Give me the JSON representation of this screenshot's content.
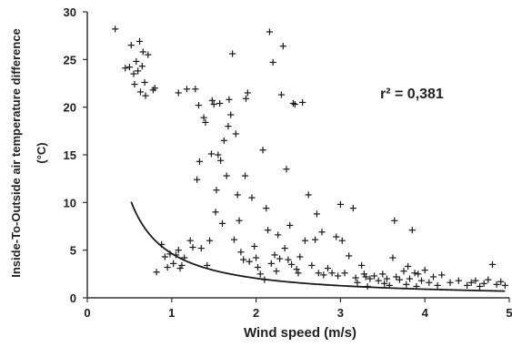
{
  "chart_data": {
    "type": "scatter",
    "xlabel": "Wind speed (m/s)",
    "ylabel_line1": "Inside-To-Outside air temperature difference",
    "ylabel_line2": "(°C)",
    "annotation": "r² = 0,381",
    "xlim": [
      0,
      5
    ],
    "ylim": [
      0,
      30
    ],
    "xticks": [
      "0",
      "1",
      "2",
      "3",
      "4",
      "5"
    ],
    "yticks": [
      "0",
      "5",
      "10",
      "15",
      "20",
      "25",
      "30"
    ],
    "grid": false,
    "marker": "+",
    "fit_curve": {
      "type": "power",
      "a": 4.65,
      "b": -1.18,
      "x_start": 0.52,
      "x_end": 4.95
    },
    "points": [
      [
        0.33,
        28.2
      ],
      [
        0.45,
        24.1
      ],
      [
        0.5,
        24.2
      ],
      [
        0.52,
        26.5
      ],
      [
        0.55,
        23.5
      ],
      [
        0.56,
        22.4
      ],
      [
        0.58,
        24.8
      ],
      [
        0.6,
        23.8
      ],
      [
        0.62,
        26.9
      ],
      [
        0.63,
        21.6
      ],
      [
        0.65,
        24.3
      ],
      [
        0.66,
        25.8
      ],
      [
        0.68,
        22.6
      ],
      [
        0.69,
        21.2
      ],
      [
        0.72,
        25.5
      ],
      [
        0.78,
        21.8
      ],
      [
        0.8,
        22.0
      ],
      [
        0.82,
        2.7
      ],
      [
        0.88,
        5.6
      ],
      [
        0.92,
        4.3
      ],
      [
        0.95,
        3.2
      ],
      [
        0.98,
        4.6
      ],
      [
        1.02,
        3.6
      ],
      [
        1.05,
        4.5
      ],
      [
        1.08,
        5.0
      ],
      [
        1.1,
        3.1
      ],
      [
        1.12,
        3.4
      ],
      [
        1.15,
        4.2
      ],
      [
        1.18,
        21.9
      ],
      [
        1.08,
        21.5
      ],
      [
        1.28,
        21.9
      ],
      [
        1.22,
        6.0
      ],
      [
        1.25,
        5.3
      ],
      [
        1.3,
        12.4
      ],
      [
        1.32,
        20.2
      ],
      [
        1.33,
        14.3
      ],
      [
        1.35,
        5.2
      ],
      [
        1.38,
        18.9
      ],
      [
        1.4,
        18.4
      ],
      [
        1.42,
        3.4
      ],
      [
        1.45,
        6.0
      ],
      [
        1.47,
        15.1
      ],
      [
        1.48,
        20.7
      ],
      [
        1.5,
        20.3
      ],
      [
        1.52,
        9.0
      ],
      [
        1.53,
        11.3
      ],
      [
        1.55,
        15.0
      ],
      [
        1.57,
        20.4
      ],
      [
        1.58,
        14.4
      ],
      [
        1.6,
        7.8
      ],
      [
        1.62,
        16.5
      ],
      [
        1.65,
        12.8
      ],
      [
        1.67,
        18.0
      ],
      [
        1.68,
        20.8
      ],
      [
        1.7,
        19.2
      ],
      [
        1.72,
        25.6
      ],
      [
        1.74,
        6.1
      ],
      [
        1.76,
        17.2
      ],
      [
        1.78,
        10.8
      ],
      [
        1.8,
        8.1
      ],
      [
        1.82,
        4.8
      ],
      [
        1.85,
        4.0
      ],
      [
        1.87,
        12.8
      ],
      [
        1.88,
        20.9
      ],
      [
        1.9,
        21.5
      ],
      [
        1.92,
        3.8
      ],
      [
        1.95,
        10.5
      ],
      [
        1.98,
        5.4
      ],
      [
        2.0,
        4.2
      ],
      [
        2.02,
        3.2
      ],
      [
        2.05,
        2.5
      ],
      [
        2.08,
        15.5
      ],
      [
        2.1,
        1.9
      ],
      [
        2.12,
        9.4
      ],
      [
        2.14,
        7.1
      ],
      [
        2.16,
        27.9
      ],
      [
        2.18,
        3.6
      ],
      [
        2.2,
        24.7
      ],
      [
        2.22,
        4.5
      ],
      [
        2.24,
        2.8
      ],
      [
        2.26,
        6.6
      ],
      [
        2.28,
        4.1
      ],
      [
        2.3,
        21.3
      ],
      [
        2.32,
        26.4
      ],
      [
        2.34,
        5.2
      ],
      [
        2.36,
        13.5
      ],
      [
        2.38,
        4.0
      ],
      [
        2.4,
        7.6
      ],
      [
        2.42,
        3.5
      ],
      [
        2.44,
        20.4
      ],
      [
        2.46,
        20.3
      ],
      [
        2.48,
        3.0
      ],
      [
        2.5,
        2.6
      ],
      [
        2.52,
        4.3
      ],
      [
        2.55,
        20.5
      ],
      [
        2.58,
        6.0
      ],
      [
        2.62,
        10.8
      ],
      [
        2.66,
        3.4
      ],
      [
        2.7,
        6.1
      ],
      [
        2.72,
        8.8
      ],
      [
        2.74,
        2.6
      ],
      [
        2.78,
        6.9
      ],
      [
        2.8,
        2.4
      ],
      [
        2.85,
        3.1
      ],
      [
        2.9,
        2.6
      ],
      [
        2.95,
        6.4
      ],
      [
        2.97,
        2.3
      ],
      [
        3.0,
        9.8
      ],
      [
        3.02,
        6.0
      ],
      [
        3.05,
        2.6
      ],
      [
        3.1,
        4.4
      ],
      [
        3.15,
        9.4
      ],
      [
        3.18,
        2.1
      ],
      [
        3.2,
        1.6
      ],
      [
        3.25,
        3.4
      ],
      [
        3.28,
        2.5
      ],
      [
        3.3,
        2.2
      ],
      [
        3.32,
        1.2
      ],
      [
        3.35,
        2.0
      ],
      [
        3.4,
        2.3
      ],
      [
        3.45,
        1.8
      ],
      [
        3.5,
        2.5
      ],
      [
        3.52,
        1.5
      ],
      [
        3.55,
        2.0
      ],
      [
        3.58,
        1.3
      ],
      [
        3.62,
        4.2
      ],
      [
        3.64,
        8.1
      ],
      [
        3.66,
        2.2
      ],
      [
        3.7,
        1.9
      ],
      [
        3.75,
        2.8
      ],
      [
        3.78,
        1.4
      ],
      [
        3.8,
        3.3
      ],
      [
        3.82,
        2.0
      ],
      [
        3.85,
        7.1
      ],
      [
        3.88,
        2.6
      ],
      [
        3.9,
        1.2
      ],
      [
        3.92,
        2.5
      ],
      [
        3.96,
        1.8
      ],
      [
        4.0,
        2.9
      ],
      [
        4.05,
        1.6
      ],
      [
        4.1,
        2.2
      ],
      [
        4.15,
        1.3
      ],
      [
        4.2,
        2.4
      ],
      [
        4.3,
        1.6
      ],
      [
        4.4,
        1.8
      ],
      [
        4.5,
        1.3
      ],
      [
        4.55,
        1.6
      ],
      [
        4.6,
        1.8
      ],
      [
        4.65,
        1.2
      ],
      [
        4.7,
        1.5
      ],
      [
        4.75,
        1.9
      ],
      [
        4.8,
        3.5
      ],
      [
        4.85,
        1.4
      ],
      [
        4.9,
        1.7
      ],
      [
        4.95,
        1.3
      ]
    ]
  }
}
